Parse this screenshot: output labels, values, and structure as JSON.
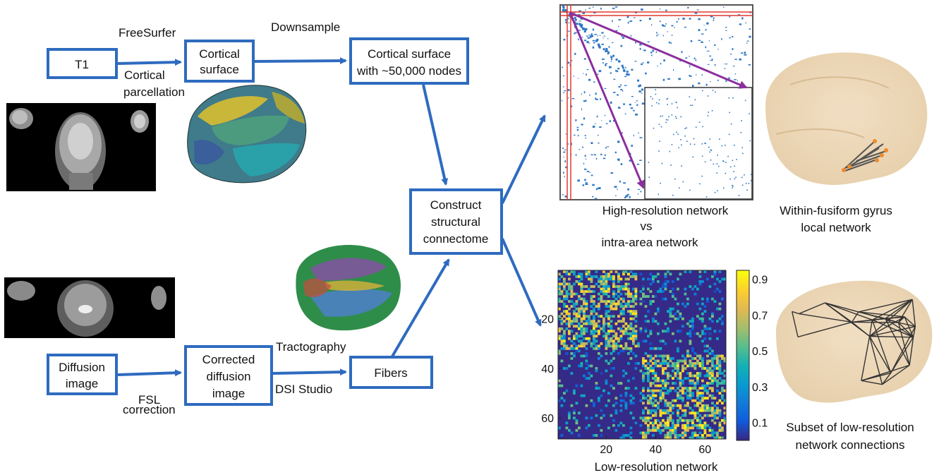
{
  "boxes": {
    "t1": [
      "T1"
    ],
    "cortical_surface": [
      "Cortical",
      "surface"
    ],
    "cortical_50k": [
      "Cortical surface",
      "with ~50,000 nodes"
    ],
    "construct": [
      "Construct",
      "structural",
      "connectome"
    ],
    "diffusion": [
      "Diffusion",
      "image"
    ],
    "corrected": [
      "Corrected",
      "diffusion",
      "image"
    ],
    "fibers": [
      "Fibers"
    ]
  },
  "edge_labels": {
    "freesurfer": "FreeSurfer",
    "cortical_parcellation": [
      "Cortical",
      "parcellation"
    ],
    "downsample": "Downsample",
    "fsl_correction": [
      "FSL",
      "correction"
    ],
    "tractography": "Tractography",
    "dsi_studio": "DSI Studio"
  },
  "captions": {
    "high_res": [
      "High-resolution network",
      "vs",
      "intra-area network"
    ],
    "fusiform": [
      "Within-fusiform gyrus",
      "local network"
    ],
    "low_res": "Low-resolution network",
    "subset": [
      "Subset of low-resolution",
      "network connections"
    ]
  },
  "chart_data": {
    "type": "heatmap",
    "title": "",
    "xlabel": "",
    "ylabel": "",
    "x_ticks": [
      "20",
      "40",
      "60"
    ],
    "y_ticks": [
      "20",
      "40",
      "60"
    ],
    "n": 68,
    "colorbar_ticks": [
      "0.9",
      "0.7",
      "0.5",
      "0.3",
      "0.1"
    ],
    "vlim": [
      0.0,
      0.95
    ],
    "colormap": "parula"
  },
  "colors": {
    "box_stroke": "#2e6bbf",
    "arrow": "#2e6bbf",
    "purple_arrow": "#8b2f9e",
    "matrix_dot": "#2f78c4",
    "red_line": "#e03a2f",
    "brain_tint": "#e8d2b0"
  }
}
